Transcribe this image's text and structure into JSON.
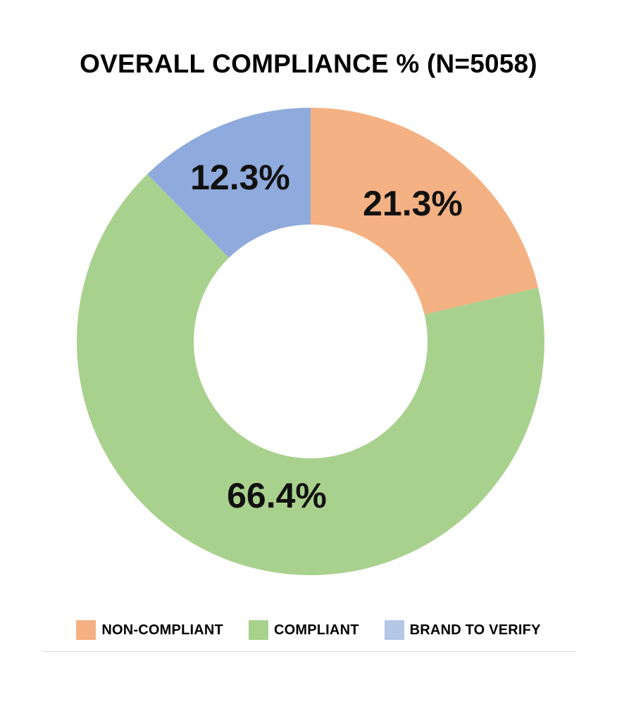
{
  "chart_data": {
    "type": "pie",
    "title": "OVERALL COMPLIANCE % (N=5058)",
    "slices": [
      {
        "name": "NON-COMPLIANT",
        "value": 21.3,
        "label": "21.3%",
        "color": "#f4b183"
      },
      {
        "name": "COMPLIANT",
        "value": 66.4,
        "label": "66.4%",
        "color": "#a9d18e"
      },
      {
        "name": "BRAND TO VERIFY",
        "value": 12.3,
        "label": "12.3%",
        "color": "#8faadc"
      }
    ],
    "donut": true,
    "legend_position": "bottom",
    "legend": [
      {
        "label": "NON-COMPLIANT",
        "color": "#f4b183"
      },
      {
        "label": "COMPLIANT",
        "color": "#a9d18e"
      },
      {
        "label": "BRAND TO VERIFY",
        "color": "#b4c7e7"
      }
    ]
  }
}
